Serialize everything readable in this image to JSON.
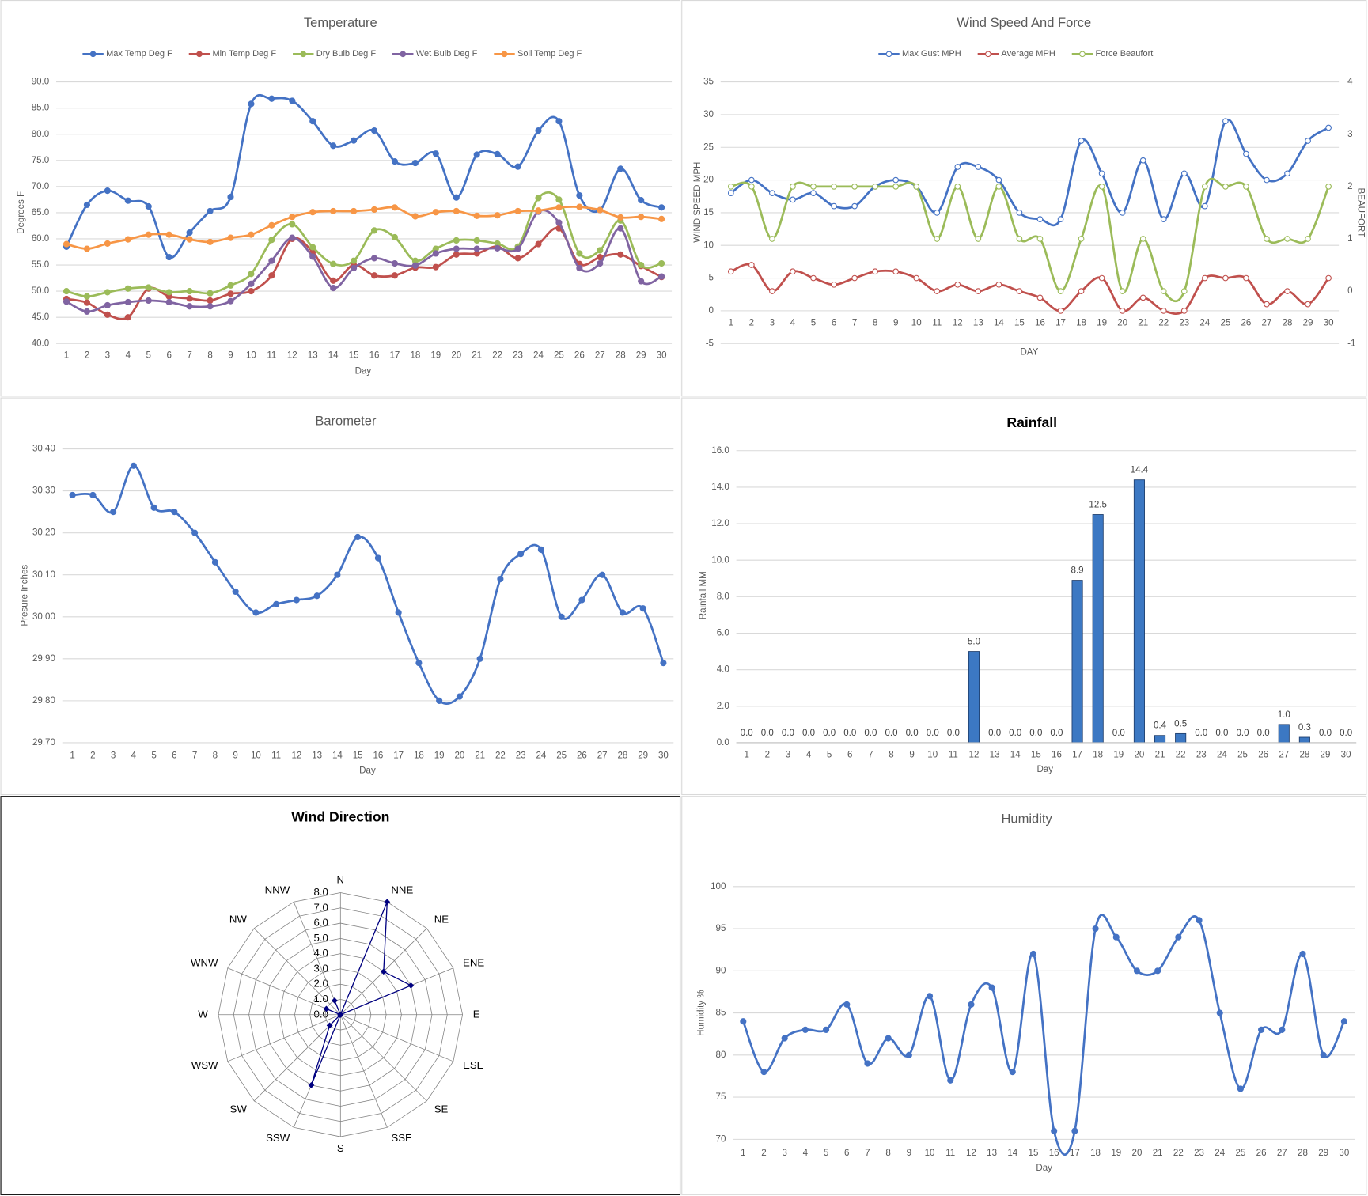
{
  "chart_data": [
    {
      "type": "line",
      "title": "Temperature",
      "x_label": "Day",
      "y_label": "Degrees F",
      "categories": [
        1,
        2,
        3,
        4,
        5,
        6,
        7,
        8,
        9,
        10,
        11,
        12,
        13,
        14,
        15,
        16,
        17,
        18,
        19,
        20,
        21,
        22,
        23,
        24,
        25,
        26,
        27,
        28,
        29,
        30
      ],
      "ylim": [
        40,
        90
      ],
      "yticks": [
        {
          "value": 40,
          "label": "40.0"
        },
        {
          "value": 45,
          "label": "45.0"
        },
        {
          "value": 50,
          "label": "50.0"
        },
        {
          "value": 55,
          "label": "55.0"
        },
        {
          "value": 60,
          "label": "60.0"
        },
        {
          "value": 65,
          "label": "65.0"
        },
        {
          "value": 70,
          "label": "70.0"
        },
        {
          "value": 75,
          "label": "75.0"
        },
        {
          "value": 80,
          "label": "80.0"
        },
        {
          "value": 85,
          "label": "85.0"
        },
        {
          "value": 90,
          "label": "90.0"
        }
      ],
      "grid": true,
      "smooth": true,
      "legend": "top",
      "series": [
        {
          "name": "Max Temp Deg F",
          "color": "#4472c4",
          "values": [
            58.5,
            66.5,
            69.2,
            67.3,
            66.2,
            56.5,
            61.2,
            65.3,
            68,
            85.8,
            86.8,
            86.4,
            82.5,
            77.8,
            78.8,
            80.7,
            74.8,
            74.5,
            76.3,
            67.9,
            76.1,
            76.2,
            73.8,
            80.7,
            82.5,
            68.3,
            65.5,
            73.4,
            67.4,
            66
          ]
        },
        {
          "name": "Min Temp Deg F",
          "color": "#c0504d",
          "values": [
            48.5,
            47.8,
            45.5,
            45,
            50.5,
            49,
            48.6,
            48.2,
            49.5,
            50,
            53,
            60,
            57.5,
            52,
            55,
            53,
            53,
            54.5,
            54.6,
            57,
            57.2,
            58.5,
            56.3,
            59,
            62,
            55.2,
            56.5,
            57,
            54.8,
            52.7
          ]
        },
        {
          "name": "Dry Bulb Deg F",
          "color": "#9bbb59",
          "values": [
            50,
            49,
            49.8,
            50.5,
            50.7,
            49.8,
            50,
            49.6,
            51.1,
            53.3,
            59.8,
            62.8,
            58.4,
            55.2,
            55.8,
            61.6,
            60.3,
            55.8,
            58.1,
            59.7,
            59.7,
            59.1,
            58.5,
            67.8,
            67.5,
            57.2,
            57.8,
            63.5,
            55,
            55.3
          ]
        },
        {
          "name": "Wet Bulb Deg F",
          "color": "#8064a2",
          "values": [
            48,
            46.1,
            47.3,
            47.9,
            48.2,
            47.9,
            47.1,
            47.1,
            48.1,
            51.4,
            55.8,
            60.2,
            56.6,
            50.6,
            54.4,
            56.3,
            55.3,
            54.9,
            57.2,
            58.1,
            58.1,
            58.2,
            58.1,
            65.2,
            63.1,
            54.4,
            55.3,
            62,
            51.9,
            52.8
          ]
        },
        {
          "name": "Soil Temp Deg F",
          "color": "#f79646",
          "values": [
            59,
            58.1,
            59.1,
            59.9,
            60.8,
            60.8,
            59.9,
            59.4,
            60.2,
            60.8,
            62.6,
            64.2,
            65.1,
            65.3,
            65.3,
            65.6,
            66,
            64.3,
            65.1,
            65.3,
            64.4,
            64.5,
            65.3,
            65.4,
            66,
            66.1,
            65.5,
            64.1,
            64.2,
            63.8
          ]
        }
      ]
    },
    {
      "type": "line",
      "title": "Wind Speed And Force",
      "x_label": "DAY",
      "y_label": "WIND SPEED MPH",
      "y2_label": "BEAUFORT",
      "categories": [
        1,
        2,
        3,
        4,
        5,
        6,
        7,
        8,
        9,
        10,
        11,
        12,
        13,
        14,
        15,
        16,
        17,
        18,
        19,
        20,
        21,
        22,
        23,
        24,
        25,
        26,
        27,
        28,
        29,
        30
      ],
      "ylim": [
        -5,
        35
      ],
      "yticks": [
        -5,
        0,
        5,
        10,
        15,
        20,
        25,
        30,
        35
      ],
      "y2lim": [
        -1,
        4
      ],
      "y2ticks": [
        -1,
        0,
        1,
        2,
        3,
        4
      ],
      "grid": true,
      "smooth": true,
      "legend": "top",
      "hollow_markers": true,
      "series": [
        {
          "name": "Max Gust MPH",
          "color": "#4472c4",
          "values": [
            18,
            20,
            18,
            17,
            18,
            16,
            16,
            19,
            20,
            19,
            15,
            22,
            22,
            20,
            15,
            14,
            14,
            26,
            21,
            15,
            23,
            14,
            21,
            16,
            29,
            24,
            20,
            21,
            26,
            28
          ]
        },
        {
          "name": "Average MPH",
          "color": "#c0504d",
          "values": [
            6,
            7,
            3,
            6,
            5,
            4,
            5,
            6,
            6,
            5,
            3,
            4,
            3,
            4,
            3,
            2,
            0,
            3,
            5,
            0,
            2,
            0,
            0,
            5,
            5,
            5,
            1,
            3,
            1,
            5
          ]
        },
        {
          "name": "Force Beaufort",
          "color": "#9bbb59",
          "axis": "y2",
          "values": [
            2,
            2,
            1,
            2,
            2,
            2,
            2,
            2,
            2,
            2,
            1,
            2,
            1,
            2,
            1,
            1,
            0,
            1,
            2,
            0,
            1,
            0,
            0,
            2,
            2,
            2,
            1,
            1,
            1,
            2
          ]
        }
      ]
    },
    {
      "type": "line",
      "title": "Barometer",
      "x_label": "Day",
      "y_label": "Presure Inches",
      "categories": [
        1,
        2,
        3,
        4,
        5,
        6,
        7,
        8,
        9,
        10,
        11,
        12,
        13,
        14,
        15,
        16,
        17,
        18,
        19,
        20,
        21,
        22,
        23,
        24,
        25,
        26,
        27,
        28,
        29,
        30
      ],
      "ylim": [
        29.7,
        30.4
      ],
      "yticks": [
        {
          "value": 29.7,
          "label": "29.70"
        },
        {
          "value": 29.8,
          "label": "29.80"
        },
        {
          "value": 29.9,
          "label": "29.90"
        },
        {
          "value": 30,
          "label": "30.00"
        },
        {
          "value": 30.1,
          "label": "30.10"
        },
        {
          "value": 30.2,
          "label": "30.20"
        },
        {
          "value": 30.3,
          "label": "30.30"
        },
        {
          "value": 30.4,
          "label": "30.40"
        }
      ],
      "grid": true,
      "smooth": true,
      "series": [
        {
          "color": "#4472c4",
          "values": [
            30.29,
            30.29,
            30.25,
            30.36,
            30.26,
            30.25,
            30.2,
            30.13,
            30.06,
            30.01,
            30.03,
            30.04,
            30.05,
            30.1,
            30.19,
            30.14,
            30.01,
            29.89,
            29.8,
            29.81,
            29.9,
            30.09,
            30.15,
            30.16,
            30,
            30.04,
            30.1,
            30.01,
            30.02,
            29.89
          ]
        }
      ]
    },
    {
      "type": "bar",
      "title": "Rainfall",
      "x_label": "Day",
      "y_label": "Rainfall MM",
      "categories": [
        1,
        2,
        3,
        4,
        5,
        6,
        7,
        8,
        9,
        10,
        11,
        12,
        13,
        14,
        15,
        16,
        17,
        18,
        19,
        20,
        21,
        22,
        23,
        24,
        25,
        26,
        27,
        28,
        29,
        30
      ],
      "ylim": [
        0,
        16
      ],
      "yticks": [
        {
          "value": 0,
          "label": "0.0"
        },
        {
          "value": 2,
          "label": "2.0"
        },
        {
          "value": 4,
          "label": "4.0"
        },
        {
          "value": 6,
          "label": "6.0"
        },
        {
          "value": 8,
          "label": "8.0"
        },
        {
          "value": 10,
          "label": "10.0"
        },
        {
          "value": 12,
          "label": "12.0"
        },
        {
          "value": 14,
          "label": "14.0"
        },
        {
          "value": 16,
          "label": "16.0"
        }
      ],
      "grid": true,
      "color": "#3c78c3",
      "values": [
        0,
        0,
        0,
        0,
        0,
        0,
        0,
        0,
        0,
        0,
        0,
        5,
        0,
        0,
        0,
        0,
        8.9,
        12.5,
        0,
        14.4,
        0.4,
        0.5,
        0,
        0,
        0,
        0,
        1,
        0.3,
        0,
        0
      ],
      "value_labels": [
        "0.0",
        "0.0",
        "0.0",
        "0.0",
        "0.0",
        "0.0",
        "0.0",
        "0.0",
        "0.0",
        "0.0",
        "0.0",
        "5.0",
        "0.0",
        "0.0",
        "0.0",
        "0.0",
        "8.9",
        "12.5",
        "0.0",
        "14.4",
        "0.4",
        "0.5",
        "0.0",
        "0.0",
        "0.0",
        "0.0",
        "1.0",
        "0.3",
        "0.0",
        "0.0"
      ]
    },
    {
      "type": "radar",
      "title": "Wind Direction",
      "categories": [
        "N",
        "NNE",
        "NE",
        "ENE",
        "E",
        "ESE",
        "SE",
        "SSE",
        "S",
        "SSW",
        "SW",
        "WSW",
        "W",
        "WNW",
        "NW",
        "NNW"
      ],
      "values": [
        0,
        8,
        4,
        5,
        0,
        0,
        0,
        0,
        0,
        5,
        1,
        0,
        0,
        1,
        0,
        1
      ],
      "rlim": [
        0,
        8
      ],
      "rticks": [
        {
          "value": 0,
          "label": "0.0"
        },
        {
          "value": 1,
          "label": "1.0"
        },
        {
          "value": 2,
          "label": "2.0"
        },
        {
          "value": 3,
          "label": "3.0"
        },
        {
          "value": 4,
          "label": "4.0"
        },
        {
          "value": 5,
          "label": "5.0"
        },
        {
          "value": 6,
          "label": "6.0"
        },
        {
          "value": 7,
          "label": "7.0"
        },
        {
          "value": 8,
          "label": "8.0"
        }
      ],
      "grid": true,
      "color": "#000080"
    },
    {
      "type": "line",
      "title": "Humidity",
      "x_label": "Day",
      "y_label": "Humidity %",
      "categories": [
        1,
        2,
        3,
        4,
        5,
        6,
        7,
        8,
        9,
        10,
        11,
        12,
        13,
        14,
        15,
        16,
        17,
        18,
        19,
        20,
        21,
        22,
        23,
        24,
        25,
        26,
        27,
        28,
        29,
        30
      ],
      "ylim": [
        70,
        100
      ],
      "yticks": [
        70,
        75,
        80,
        85,
        90,
        95,
        100
      ],
      "grid": true,
      "smooth": true,
      "series": [
        {
          "color": "#4472c4",
          "values": [
            84,
            78,
            82,
            83,
            83,
            86,
            79,
            82,
            80,
            87,
            77,
            86,
            88,
            78,
            92,
            71,
            71,
            95,
            94,
            90,
            90,
            94,
            96,
            85,
            76,
            83,
            83,
            92,
            80,
            84
          ]
        }
      ]
    }
  ]
}
